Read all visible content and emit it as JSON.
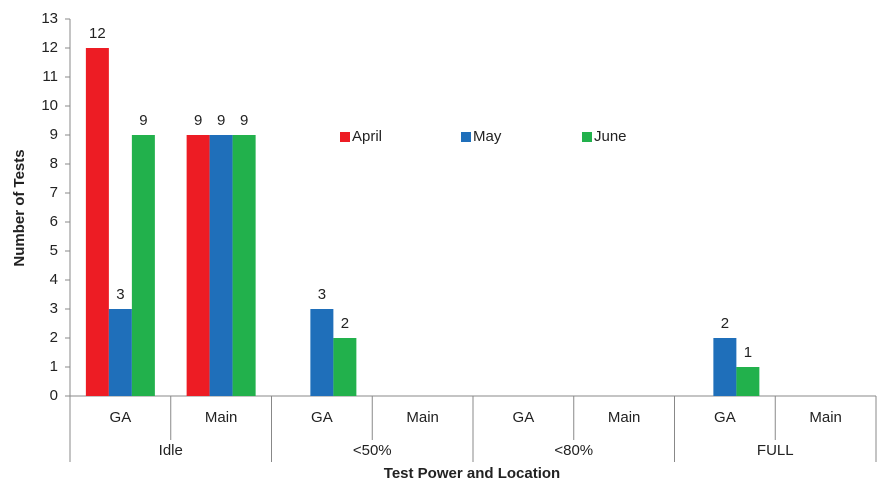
{
  "chart_data": {
    "type": "bar",
    "x_label": "Test Power and Location",
    "y_label": "Number of Tests",
    "categories": [
      "GA",
      "Main",
      "GA",
      "Main",
      "GA",
      "Main",
      "GA",
      "Main"
    ],
    "groups": [
      "Idle",
      "<50%",
      "<80%",
      "FULL"
    ],
    "series": [
      {
        "name": "April",
        "color": "#ed1c24",
        "values": [
          12,
          9,
          null,
          null,
          null,
          null,
          null,
          null
        ]
      },
      {
        "name": "May",
        "color": "#1f6fba",
        "values": [
          3,
          9,
          3,
          null,
          null,
          null,
          2,
          null
        ]
      },
      {
        "name": "June",
        "color": "#22b14c",
        "values": [
          9,
          9,
          2,
          null,
          null,
          null,
          1,
          null
        ]
      }
    ],
    "ylim": [
      0,
      13
    ],
    "yticks": [
      0,
      1,
      2,
      3,
      4,
      5,
      6,
      7,
      8,
      9,
      10,
      11,
      12,
      13
    ],
    "grid": false,
    "legend": "inside-top"
  }
}
